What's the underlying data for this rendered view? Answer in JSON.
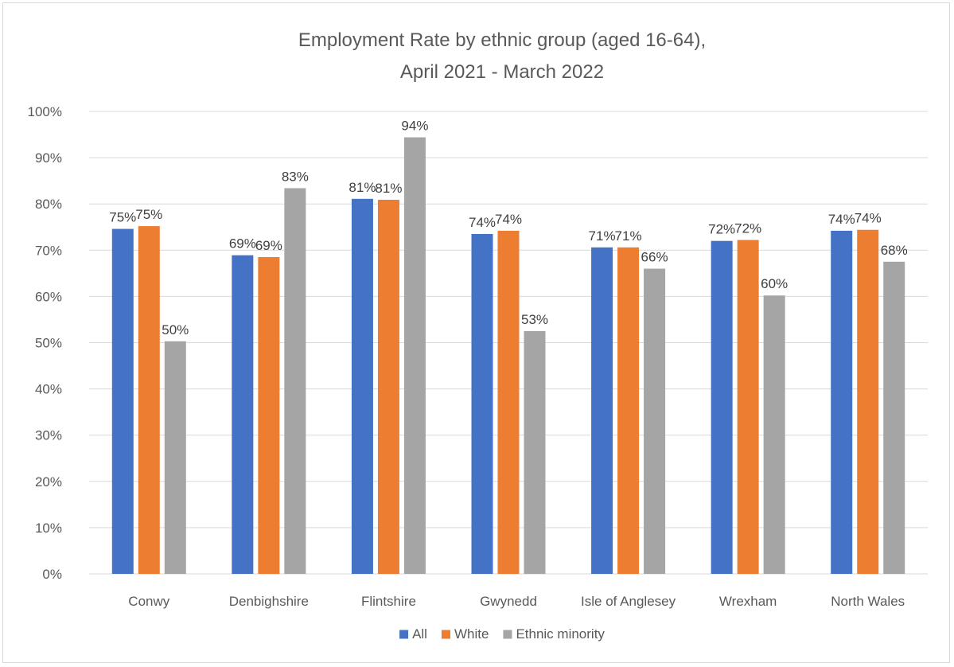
{
  "chart_data": {
    "type": "bar",
    "title": [
      "Employment Rate by ethnic group (aged 16-64),",
      "April 2021 - March 2022"
    ],
    "categories": [
      "Conwy",
      "Denbighshire",
      "Flintshire",
      "Gwynedd",
      "Isle of Anglesey",
      "Wrexham",
      "North Wales"
    ],
    "series": [
      {
        "name": "All",
        "color": "#4472C4",
        "values": [
          74.6,
          68.9,
          81.1,
          73.5,
          70.6,
          72.0,
          74.2
        ],
        "labels": [
          "75%",
          "69%",
          "81%",
          "74%",
          "71%",
          "72%",
          "74%"
        ]
      },
      {
        "name": "White",
        "color": "#ED7D31",
        "values": [
          75.2,
          68.5,
          80.9,
          74.2,
          70.6,
          72.2,
          74.4
        ],
        "labels": [
          "75%",
          "69%",
          "81%",
          "74%",
          "71%",
          "72%",
          "74%"
        ]
      },
      {
        "name": "Ethnic minority",
        "color": "#A5A5A5",
        "values": [
          50.3,
          83.4,
          94.4,
          52.5,
          66.0,
          60.2,
          67.5
        ],
        "labels": [
          "50%",
          "83%",
          "94%",
          "53%",
          "66%",
          "60%",
          "68%"
        ]
      }
    ],
    "ylim": [
      0,
      100
    ],
    "yticks": [
      "0%",
      "10%",
      "20%",
      "30%",
      "40%",
      "50%",
      "60%",
      "70%",
      "80%",
      "90%",
      "100%"
    ],
    "grid": true,
    "legend": "bottom"
  }
}
